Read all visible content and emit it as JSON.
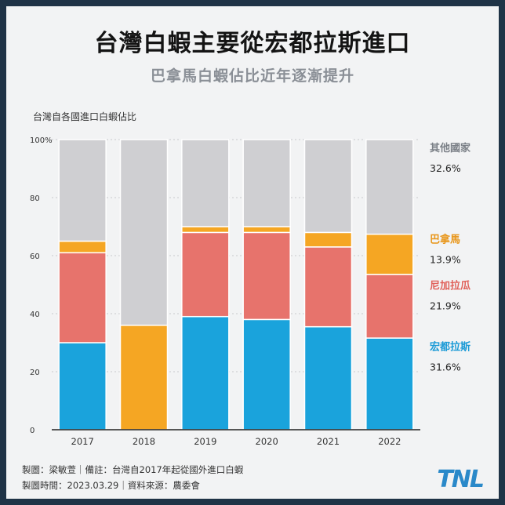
{
  "title": "台灣白蝦主要從宏都拉斯進口",
  "subtitle": "巴拿馬白蝦佔比近年逐漸提升",
  "footer": {
    "line1": "製圖：梁敏萱｜備註：台灣自2017年起從國外進口白蝦",
    "line2": "製圖時間：2023.03.29｜資料來源：農委會"
  },
  "logo_text": "TNL",
  "chart_data": {
    "type": "bar",
    "stacked": true,
    "ylabel": "台灣自各國進口白蝦佔比",
    "categories": [
      "2017",
      "2018",
      "2019",
      "2020",
      "2021",
      "2022"
    ],
    "ylim": [
      0,
      100
    ],
    "yticks": [
      "0",
      "20",
      "40",
      "60",
      "80",
      "100%"
    ],
    "grid": true,
    "legend_position": "right",
    "series": [
      {
        "name": "宏都拉斯",
        "color": "#1aa3dc",
        "values": [
          30,
          0,
          39,
          38,
          35.5,
          31.6
        ]
      },
      {
        "name": "尼加拉瓜",
        "color": "#e7736c",
        "values": [
          31,
          0,
          29,
          30,
          27.5,
          21.9
        ]
      },
      {
        "name": "巴拿馬",
        "color": "#f5a623",
        "values": [
          4,
          36,
          2,
          2,
          5,
          13.9
        ]
      },
      {
        "name": "其他國家",
        "color": "#cfcfd2",
        "values": [
          35,
          64,
          30,
          30,
          32,
          32.6
        ]
      }
    ],
    "legend": [
      {
        "name": "其他國家",
        "value": "32.6%",
        "color": "#7a7f86"
      },
      {
        "name": "巴拿馬",
        "value": "13.9%",
        "color": "#e8961a"
      },
      {
        "name": "尼加拉瓜",
        "value": "21.9%",
        "color": "#e0615a"
      },
      {
        "name": "宏都拉斯",
        "value": "31.6%",
        "color": "#1a9ad6"
      }
    ]
  }
}
